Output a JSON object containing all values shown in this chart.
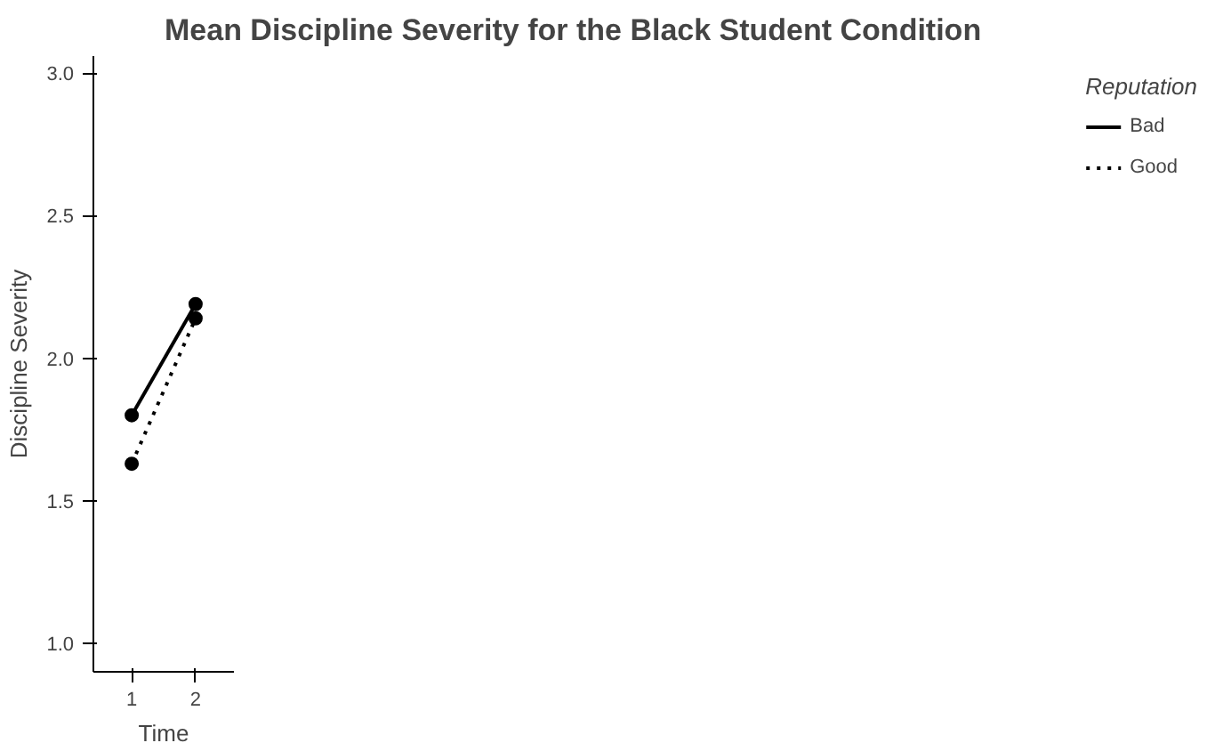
{
  "chart_data": {
    "type": "line",
    "title": "Mean Discipline Severity for the Black Student Condition",
    "xlabel": "Time",
    "ylabel": "Discipline Severity",
    "legend_title": "Reputation",
    "x": [
      1,
      2
    ],
    "series": [
      {
        "name": "Bad",
        "color": "#000000",
        "values": [
          1.8,
          2.19
        ],
        "line_style": "solid"
      },
      {
        "name": "Good",
        "color": "#000000",
        "values": [
          1.63,
          2.14
        ],
        "line_style": "dotted"
      }
    ],
    "xlim": [
      0.4,
      2.6
    ],
    "xticks": [
      1,
      2
    ],
    "ylim": [
      0.9,
      3.06
    ],
    "yticks": [
      {
        "value": 1,
        "label": "1.0"
      },
      {
        "value": 1.5,
        "label": "1.5"
      },
      {
        "value": 2,
        "label": "2.0"
      },
      {
        "value": 2.5,
        "label": "2.5"
      },
      {
        "value": 3,
        "label": "3.0"
      }
    ],
    "marker": "circle",
    "grid": false,
    "legend": "right"
  }
}
